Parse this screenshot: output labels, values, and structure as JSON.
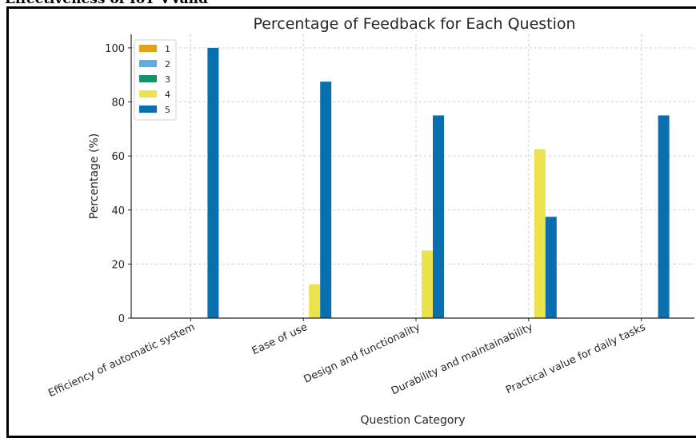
{
  "header_fragment": "Effectiveness of IoT VVand",
  "chart_data": {
    "type": "bar",
    "title": "Percentage of Feedback for Each Question",
    "xlabel": "Question Category",
    "ylabel": "Percentage (%)",
    "ylim": [
      0,
      105
    ],
    "yticks": [
      0,
      20,
      40,
      60,
      80,
      100
    ],
    "grid": true,
    "legend_position": "top-left",
    "categories": [
      "Efficiency of automatic system",
      "Ease of use",
      "Design and functionality",
      "Durability and maintainability",
      "Practical value for daily tasks"
    ],
    "series": [
      {
        "name": "1",
        "color": "#e6a117",
        "values": [
          0,
          0,
          0,
          0,
          0
        ]
      },
      {
        "name": "2",
        "color": "#5aaee3",
        "values": [
          0,
          0,
          0,
          0,
          0
        ]
      },
      {
        "name": "3",
        "color": "#14936b",
        "values": [
          0,
          0,
          0,
          0,
          0
        ]
      },
      {
        "name": "4",
        "color": "#ece24b",
        "values": [
          0,
          12.5,
          25,
          62.5,
          0.0
        ]
      },
      {
        "name": "5",
        "color": "#0a6fae",
        "values": [
          100,
          87.5,
          75,
          37.5,
          75
        ]
      }
    ]
  }
}
